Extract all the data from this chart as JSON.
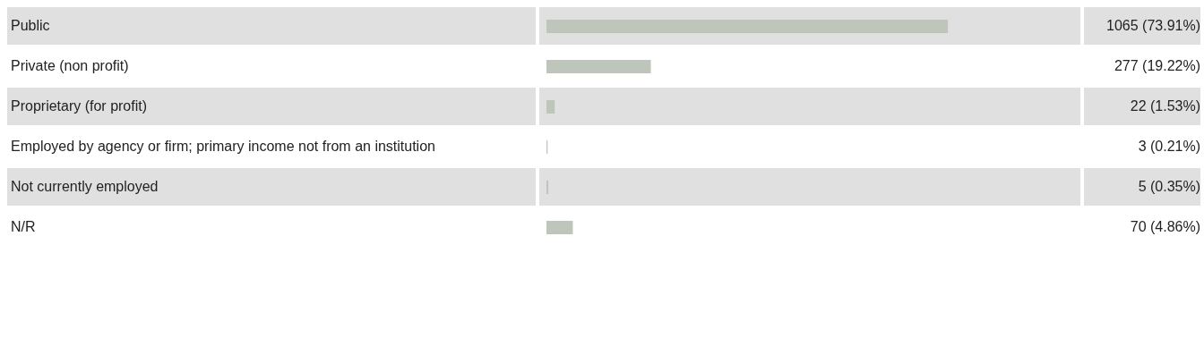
{
  "chart_data": {
    "type": "bar",
    "orientation": "horizontal",
    "categories": [
      "Public",
      "Private (non profit)",
      "Proprietary (for profit)",
      "Employed by agency or firm; primary income not from an institution",
      "Not currently employed",
      "N/R"
    ],
    "values": [
      1065,
      277,
      22,
      3,
      5,
      70
    ],
    "value_labels": [
      "1065 (73.91%)",
      "277 (19.22%)",
      "22 (1.53%)",
      "3 (0.21%)",
      "5 (0.35%)",
      "70 (4.86%)"
    ],
    "color": "#bec6bc"
  }
}
